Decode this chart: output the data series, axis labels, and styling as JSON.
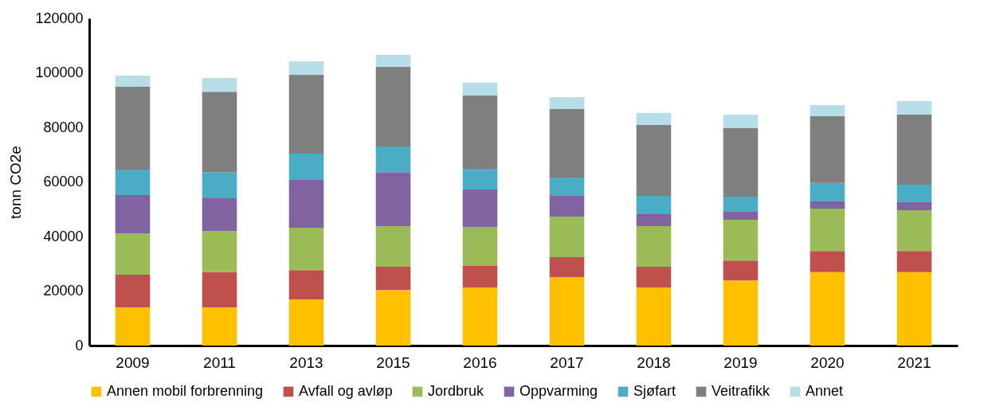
{
  "chart_data": {
    "type": "bar",
    "stacked": true,
    "ylabel": "tonn CO2e",
    "categories": [
      "2009",
      "2011",
      "2013",
      "2015",
      "2016",
      "2017",
      "2018",
      "2019",
      "2020",
      "2021"
    ],
    "ylim": [
      0,
      120000
    ],
    "yticks": [
      0,
      20000,
      40000,
      60000,
      80000,
      100000,
      120000
    ],
    "grid": false,
    "legend": "bottom",
    "series": [
      {
        "name": "Annen mobil forbrenning",
        "color": "#ffc000",
        "values": [
          14000,
          14000,
          16900,
          20400,
          21300,
          25100,
          21300,
          23900,
          26900,
          26900
        ]
      },
      {
        "name": "Avfall og avløp",
        "color": "#c0504d",
        "values": [
          12000,
          12900,
          10800,
          8500,
          7900,
          7300,
          7600,
          7300,
          7800,
          7800
        ]
      },
      {
        "name": "Jordbruk",
        "color": "#9bbb59",
        "values": [
          15200,
          15100,
          15500,
          14900,
          14300,
          14900,
          14900,
          14900,
          15500,
          14900
        ]
      },
      {
        "name": "Oppvarming",
        "color": "#8064a2",
        "values": [
          14000,
          12000,
          17500,
          19800,
          13700,
          7600,
          4400,
          3200,
          2900,
          3200
        ]
      },
      {
        "name": "Sjøfart",
        "color": "#4bacc6",
        "values": [
          9300,
          9600,
          9700,
          9400,
          7600,
          6700,
          6700,
          5300,
          6500,
          6200
        ]
      },
      {
        "name": "Veitrafikk",
        "color": "#7f7f7f",
        "values": [
          30400,
          29500,
          28900,
          29200,
          26900,
          25100,
          26000,
          25100,
          24500,
          25700
        ]
      },
      {
        "name": "Annet",
        "color": "#b7dee8",
        "values": [
          4100,
          5000,
          4900,
          4400,
          4700,
          4400,
          4400,
          5000,
          4100,
          4900
        ]
      }
    ]
  }
}
